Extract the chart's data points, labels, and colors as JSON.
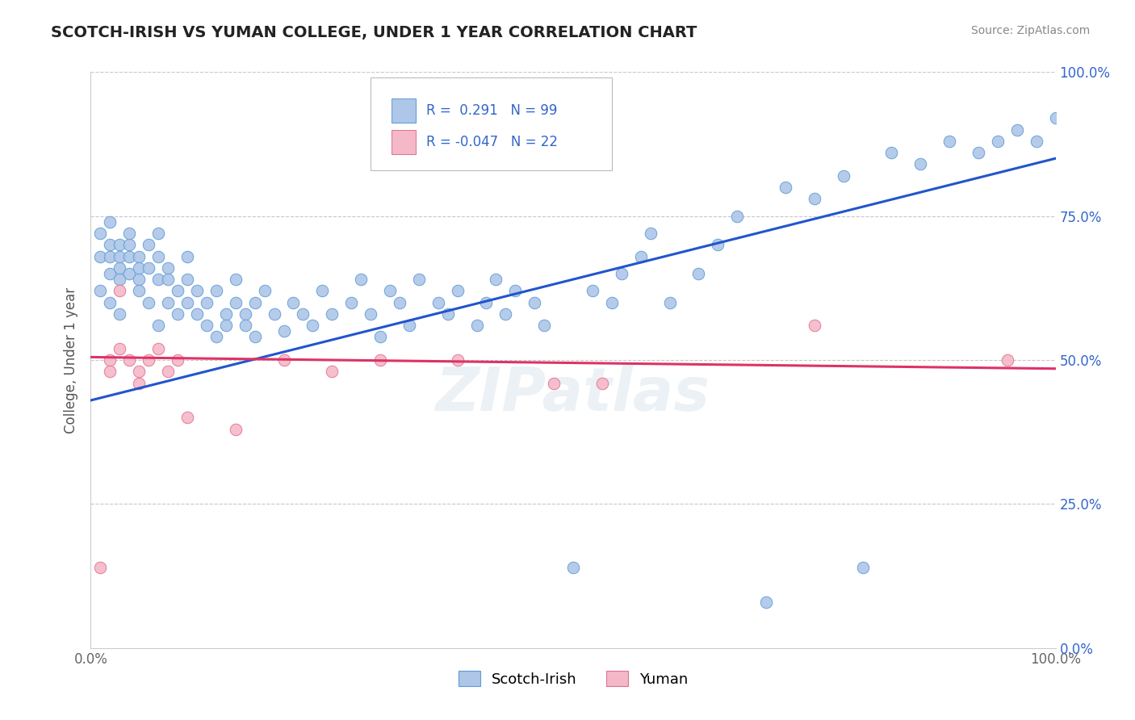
{
  "title": "SCOTCH-IRISH VS YUMAN COLLEGE, UNDER 1 YEAR CORRELATION CHART",
  "source_text": "Source: ZipAtlas.com",
  "ylabel": "College, Under 1 year",
  "xlim": [
    0.0,
    1.0
  ],
  "ylim": [
    0.0,
    1.0
  ],
  "ytick_positions": [
    0.0,
    0.25,
    0.5,
    0.75,
    1.0
  ],
  "blue_R": 0.291,
  "blue_N": 99,
  "pink_R": -0.047,
  "pink_N": 22,
  "blue_color": "#aec6e8",
  "blue_edge": "#5b9bd5",
  "pink_color": "#f4b8c8",
  "pink_edge": "#e07090",
  "blue_line_color": "#2255cc",
  "pink_line_color": "#dd3366",
  "grid_color": "#c8c8c8",
  "background_color": "#ffffff",
  "watermark": "ZIPatlas",
  "legend_label_blue": "Scotch-Irish",
  "legend_label_pink": "Yuman",
  "blue_trend_start": 0.43,
  "blue_trend_end": 0.85,
  "pink_trend_start": 0.505,
  "pink_trend_end": 0.485,
  "blue_x": [
    0.01,
    0.01,
    0.01,
    0.02,
    0.02,
    0.02,
    0.02,
    0.02,
    0.03,
    0.03,
    0.03,
    0.03,
    0.03,
    0.04,
    0.04,
    0.04,
    0.04,
    0.05,
    0.05,
    0.05,
    0.05,
    0.06,
    0.06,
    0.06,
    0.07,
    0.07,
    0.07,
    0.07,
    0.08,
    0.08,
    0.08,
    0.09,
    0.09,
    0.1,
    0.1,
    0.1,
    0.11,
    0.11,
    0.12,
    0.12,
    0.13,
    0.13,
    0.14,
    0.14,
    0.15,
    0.15,
    0.16,
    0.16,
    0.17,
    0.17,
    0.18,
    0.19,
    0.2,
    0.21,
    0.22,
    0.23,
    0.24,
    0.25,
    0.27,
    0.28,
    0.29,
    0.3,
    0.31,
    0.32,
    0.33,
    0.34,
    0.36,
    0.37,
    0.38,
    0.4,
    0.41,
    0.42,
    0.43,
    0.44,
    0.46,
    0.47,
    0.5,
    0.52,
    0.54,
    0.55,
    0.57,
    0.58,
    0.6,
    0.63,
    0.65,
    0.67,
    0.7,
    0.72,
    0.75,
    0.78,
    0.8,
    0.83,
    0.86,
    0.89,
    0.92,
    0.94,
    0.96,
    0.98,
    1.0
  ],
  "blue_y": [
    0.68,
    0.72,
    0.62,
    0.65,
    0.7,
    0.68,
    0.6,
    0.74,
    0.66,
    0.7,
    0.64,
    0.68,
    0.58,
    0.65,
    0.7,
    0.68,
    0.72,
    0.64,
    0.68,
    0.62,
    0.66,
    0.6,
    0.66,
    0.7,
    0.64,
    0.68,
    0.56,
    0.72,
    0.6,
    0.66,
    0.64,
    0.58,
    0.62,
    0.6,
    0.64,
    0.68,
    0.58,
    0.62,
    0.56,
    0.6,
    0.54,
    0.62,
    0.58,
    0.56,
    0.6,
    0.64,
    0.58,
    0.56,
    0.6,
    0.54,
    0.62,
    0.58,
    0.55,
    0.6,
    0.58,
    0.56,
    0.62,
    0.58,
    0.6,
    0.64,
    0.58,
    0.54,
    0.62,
    0.6,
    0.56,
    0.64,
    0.6,
    0.58,
    0.62,
    0.56,
    0.6,
    0.64,
    0.58,
    0.62,
    0.6,
    0.56,
    0.14,
    0.62,
    0.6,
    0.65,
    0.68,
    0.72,
    0.6,
    0.65,
    0.7,
    0.75,
    0.08,
    0.8,
    0.78,
    0.82,
    0.14,
    0.86,
    0.84,
    0.88,
    0.86,
    0.88,
    0.9,
    0.88,
    0.92
  ],
  "pink_x": [
    0.01,
    0.02,
    0.02,
    0.03,
    0.03,
    0.04,
    0.05,
    0.05,
    0.06,
    0.07,
    0.08,
    0.09,
    0.1,
    0.15,
    0.2,
    0.25,
    0.3,
    0.38,
    0.48,
    0.53,
    0.75,
    0.95
  ],
  "pink_y": [
    0.14,
    0.5,
    0.48,
    0.62,
    0.52,
    0.5,
    0.46,
    0.48,
    0.5,
    0.52,
    0.48,
    0.5,
    0.4,
    0.38,
    0.5,
    0.48,
    0.5,
    0.5,
    0.46,
    0.46,
    0.56,
    0.5
  ]
}
